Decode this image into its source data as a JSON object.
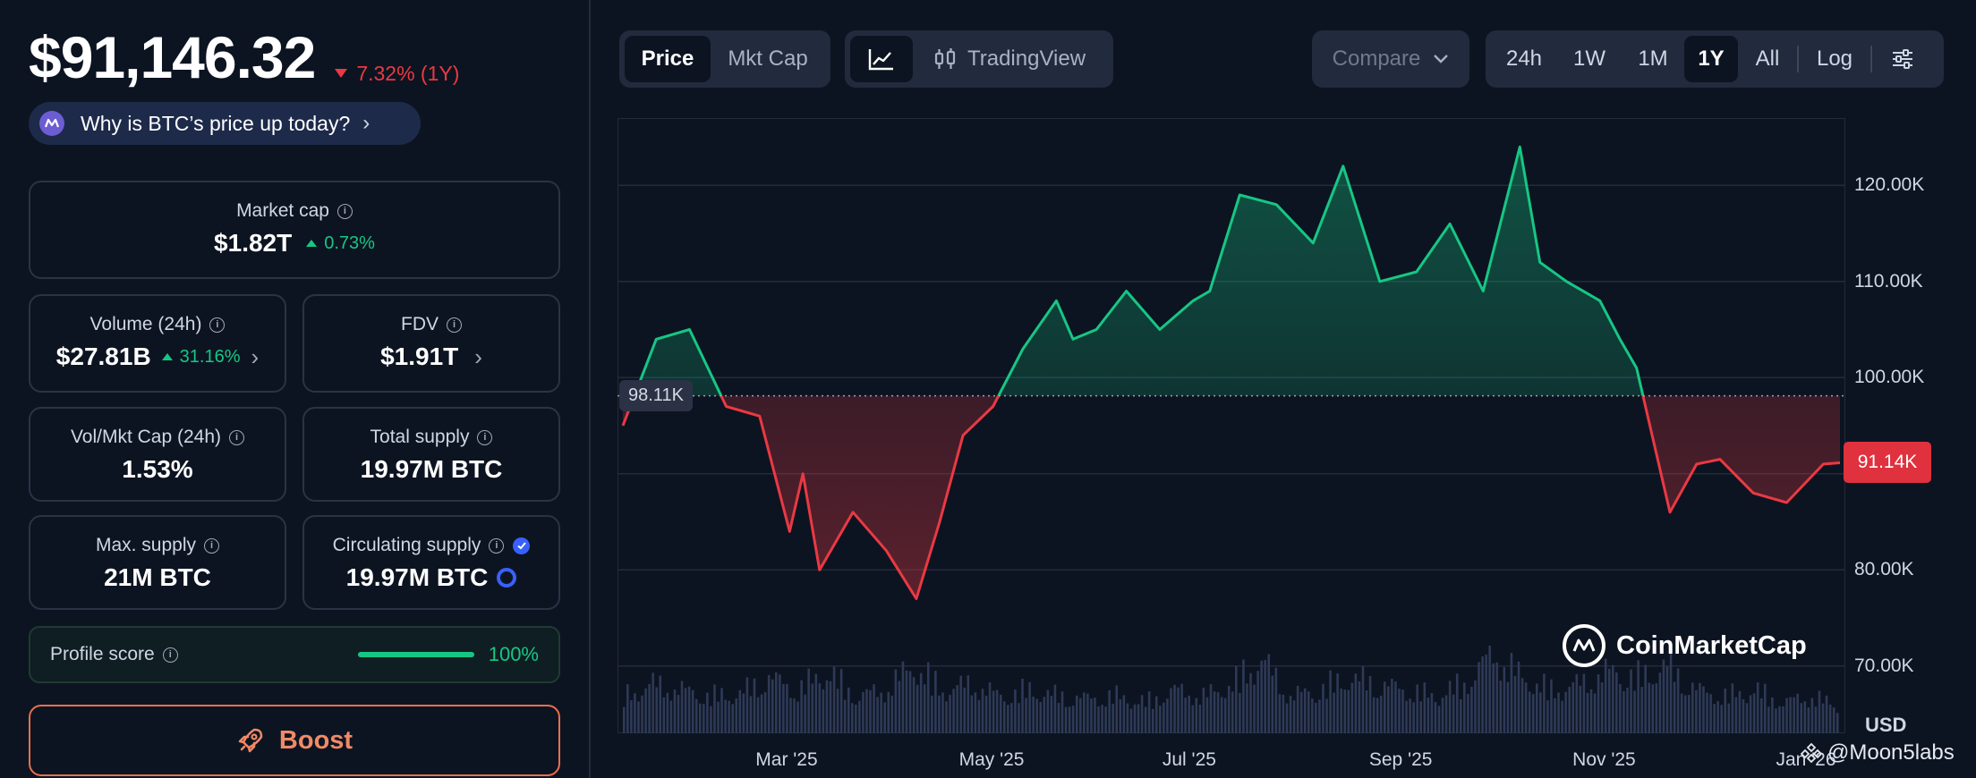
{
  "summary": {
    "price": "$91,146.32",
    "change": "7.32% (1Y)",
    "why_link": "Why is BTC’s price up today?"
  },
  "stats": {
    "market_cap": {
      "label": "Market cap",
      "value": "$1.82T",
      "change": "0.73%"
    },
    "volume": {
      "label": "Volume (24h)",
      "value": "$27.81B",
      "change": "31.16%"
    },
    "fdv": {
      "label": "FDV",
      "value": "$1.91T"
    },
    "vol_mkt_cap": {
      "label": "Vol/Mkt Cap (24h)",
      "value": "1.53%"
    },
    "total_supply": {
      "label": "Total supply",
      "value": "19.97M BTC"
    },
    "max_supply": {
      "label": "Max. supply",
      "value": "21M BTC"
    },
    "circulating_supply": {
      "label": "Circulating supply",
      "value": "19.97M BTC"
    }
  },
  "profile": {
    "label": "Profile score",
    "value": "100%",
    "level": 1.0
  },
  "boost_label": "Boost",
  "toolbar": {
    "type_tabs": [
      "Price",
      "Mkt Cap"
    ],
    "active_type": "Price",
    "tradingview_label": "TradingView",
    "compare_label": "Compare",
    "ranges": [
      "24h",
      "1W",
      "1M",
      "1Y",
      "All"
    ],
    "active_range": "1Y",
    "log_label": "Log"
  },
  "chart_labels": {
    "reference": "98.11K",
    "current": "91.14K",
    "currency": "USD",
    "brand": "CoinMarketCap",
    "watermark": "@Moon5labs"
  },
  "colors": {
    "up": "#16c784",
    "down": "#ea3943",
    "background": "#0d1421"
  },
  "chart_data": {
    "type": "area",
    "y_ticks": [
      "120.00K",
      "110.00K",
      "100.00K",
      "80.00K",
      "70.00K"
    ],
    "x_ticks": [
      "Mar '25",
      "May '25",
      "Jul '25",
      "Sep '25",
      "Nov '25",
      "Jan '26"
    ],
    "ylim": [
      63000,
      127000
    ],
    "baseline": 98110,
    "x": [
      "2025-01-10",
      "2025-01-20",
      "2025-01-30",
      "2025-02-10",
      "2025-02-20",
      "2025-03-01",
      "2025-03-05",
      "2025-03-10",
      "2025-03-20",
      "2025-03-30",
      "2025-04-08",
      "2025-04-15",
      "2025-04-22",
      "2025-05-01",
      "2025-05-10",
      "2025-05-20",
      "2025-05-25",
      "2025-06-01",
      "2025-06-10",
      "2025-06-20",
      "2025-06-30",
      "2025-07-05",
      "2025-07-14",
      "2025-07-25",
      "2025-08-05",
      "2025-08-14",
      "2025-08-25",
      "2025-09-05",
      "2025-09-15",
      "2025-09-25",
      "2025-10-06",
      "2025-10-12",
      "2025-10-20",
      "2025-10-30",
      "2025-11-05",
      "2025-11-10",
      "2025-11-20",
      "2025-11-28",
      "2025-12-05",
      "2025-12-15",
      "2025-12-25",
      "2026-01-05",
      "2026-01-10"
    ],
    "values": [
      95000,
      104000,
      105000,
      97000,
      96000,
      84000,
      90000,
      80000,
      86000,
      82000,
      77000,
      85000,
      94000,
      97000,
      103000,
      108000,
      104000,
      105000,
      109000,
      105000,
      108000,
      109000,
      119000,
      118000,
      114000,
      122000,
      110000,
      111000,
      116000,
      109000,
      124000,
      112000,
      110000,
      108000,
      104000,
      101000,
      86000,
      91000,
      91500,
      88000,
      87000,
      91000,
      91140
    ],
    "volume": [
      0.3,
      0.4,
      0.35,
      0.3,
      0.32,
      0.45,
      0.35,
      0.5,
      0.3,
      0.35,
      0.55,
      0.35,
      0.4,
      0.3,
      0.35,
      0.3,
      0.28,
      0.3,
      0.25,
      0.35,
      0.3,
      0.4,
      0.6,
      0.3,
      0.35,
      0.45,
      0.4,
      0.35,
      0.3,
      0.4,
      0.65,
      0.45,
      0.35,
      0.4,
      0.5,
      0.45,
      0.55,
      0.35,
      0.3,
      0.35,
      0.25,
      0.3,
      0.2
    ]
  }
}
